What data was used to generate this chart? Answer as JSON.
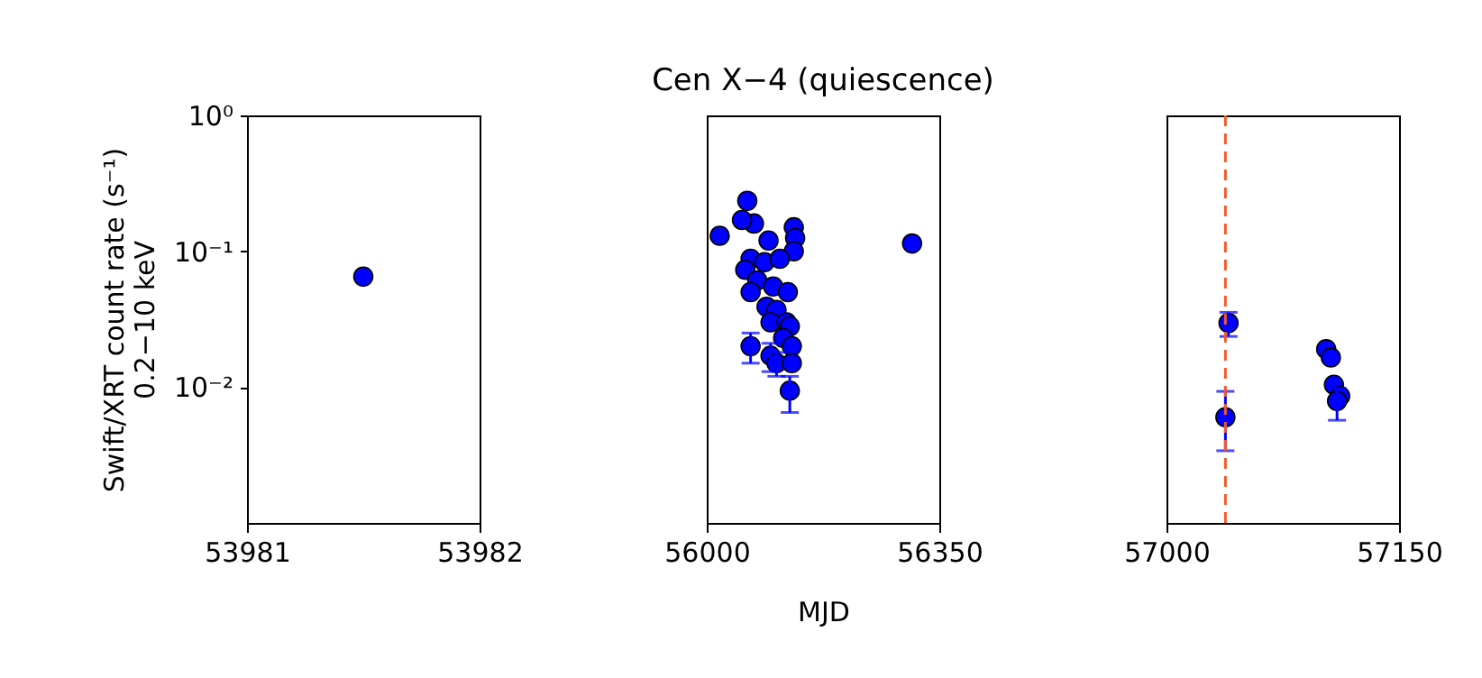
{
  "chart_data": [
    {
      "type": "scatter",
      "ylabel": "Swift/XRT count rate (s⁻¹)\n0.2−10 keV",
      "marker": "circle",
      "x": [
        53981.5
      ],
      "values": [
        0.065
      ],
      "color": "#0000ff",
      "xlim": [
        53981,
        53982
      ],
      "xticks": [
        53981,
        53982
      ],
      "log": "y",
      "ylim": [
        0.001,
        1
      ],
      "yticks": [
        {
          "value": 1,
          "label": "10⁰"
        },
        {
          "value": 0.1,
          "label": "10⁻¹"
        },
        {
          "value": 0.01,
          "label": "10⁻²"
        }
      ]
    },
    {
      "type": "scatter",
      "title": "Cen X−4 (quiescence)",
      "xlabel": "MJD",
      "marker": "circle",
      "color": "#0000ff",
      "tick_labels": "x",
      "x": [
        56019.5,
        56061,
        56309,
        56131,
        56133,
        56131,
        56093,
        56071,
        56053,
        56066,
        56058,
        56087,
        56110,
        56076,
        56100,
        56122,
        56066,
        56090,
        56105,
        56096,
        56120,
        56125,
        56066,
        56115,
        56128,
        56096,
        56105,
        56128,
        56125
      ],
      "values": [
        0.13,
        0.235,
        0.114,
        0.15,
        0.125,
        0.1,
        0.12,
        0.16,
        0.17,
        0.088,
        0.073,
        0.083,
        0.088,
        0.061,
        0.055,
        0.05,
        0.05,
        0.039,
        0.037,
        0.03,
        0.03,
        0.028,
        0.02,
        0.023,
        0.02,
        0.017,
        0.015,
        0.015,
        0.0094
      ],
      "errors": [
        null,
        null,
        null,
        null,
        null,
        null,
        null,
        null,
        null,
        null,
        null,
        null,
        null,
        null,
        null,
        null,
        null,
        null,
        null,
        null,
        null,
        null,
        [
          0.015,
          0.025
        ],
        null,
        null,
        [
          0.013,
          0.021
        ],
        [
          0.012,
          0.018
        ],
        null,
        [
          0.0065,
          0.012
        ]
      ],
      "xlim": [
        56000,
        56350
      ],
      "xticks": [
        56000,
        56350
      ],
      "log": "y",
      "ylim": [
        0.001,
        1
      ]
    },
    {
      "type": "scatter",
      "marker": "circle",
      "color": "#0000ff",
      "tick_labels": "x",
      "x": [
        57040,
        57038,
        57103,
        57106,
        57108,
        57112,
        57110
      ],
      "values": [
        0.0296,
        0.006,
        0.019,
        0.0165,
        0.0104,
        0.0086,
        0.0079
      ],
      "errors": [
        [
          0.0236,
          0.0355
        ],
        [
          0.0034,
          0.0093
        ],
        null,
        null,
        null,
        null,
        [
          0.0057,
          0.0098
        ]
      ],
      "xlim": [
        57000,
        57150
      ],
      "xticks": [
        57000,
        57150
      ],
      "log": "y",
      "ylim": [
        0.001,
        1
      ],
      "ref_lines": [
        {
          "axis": "x",
          "value": 57038,
          "color": "#f05a28",
          "line_style": "dashed"
        }
      ]
    }
  ]
}
